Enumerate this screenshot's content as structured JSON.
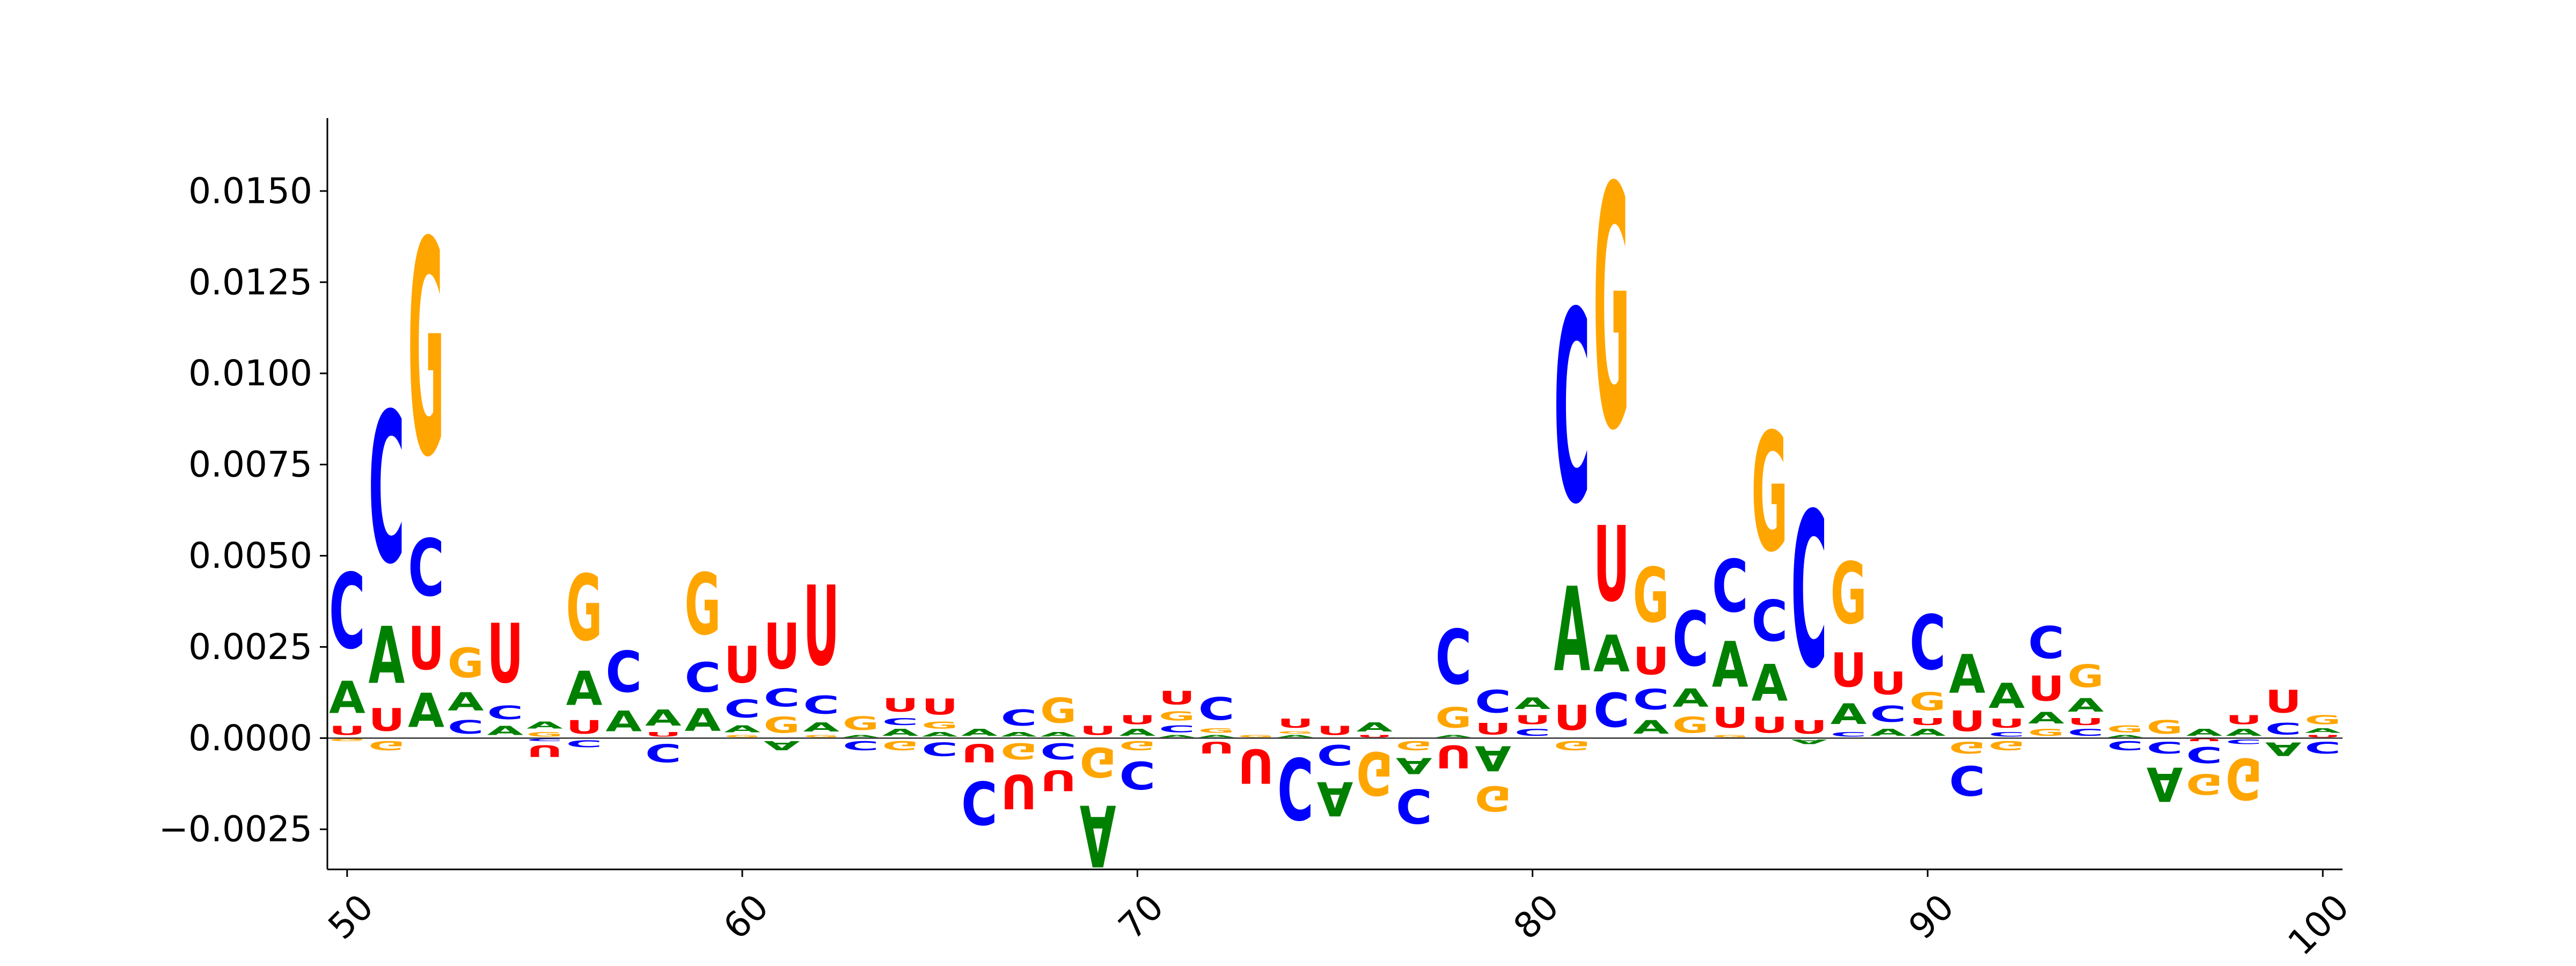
{
  "chart_data": {
    "type": "sequence-logo",
    "title": "",
    "xlabel": "",
    "ylabel": "",
    "xlim": [
      49.5,
      100.5
    ],
    "ylim": [
      -0.0036,
      0.017
    ],
    "x_ticks": [
      50,
      60,
      70,
      80,
      90,
      100
    ],
    "y_ticks": [
      -0.0025,
      0.0,
      0.0025,
      0.005,
      0.0075,
      0.01,
      0.0125,
      0.015
    ],
    "y_tick_labels": [
      "−0.0025",
      "0.0000",
      "0.0025",
      "0.0050",
      "0.0075",
      "0.0100",
      "0.0125",
      "0.0150"
    ],
    "colors": {
      "A": "#008000",
      "C": "#0000ff",
      "G": "#ffa500",
      "U": "#ff0000"
    },
    "positions": [
      {
        "x": 50,
        "A": 0.0014,
        "C": 0.0033,
        "G": -0.0001,
        "U": 0.0004
      },
      {
        "x": 51,
        "A": 0.0025,
        "C": 0.0066,
        "G": -0.0004,
        "U": 0.001
      },
      {
        "x": 52,
        "A": 0.0015,
        "C": 0.0025,
        "G": 0.0094,
        "U": 0.0019
      },
      {
        "x": 53,
        "A": 0.0008,
        "C": 0.0006,
        "G": 0.0013,
        "U": 0.0
      },
      {
        "x": 54,
        "A": 0.0004,
        "C": 0.0006,
        "G": 0.0,
        "U": 0.0026
      },
      {
        "x": 55,
        "A": 0.0003,
        "C": -0.0001,
        "G": 0.0002,
        "U": -0.0005
      },
      {
        "x": 56,
        "A": 0.0015,
        "C": -0.0003,
        "G": 0.0029,
        "U": 0.0006
      },
      {
        "x": 57,
        "A": 0.0009,
        "C": 0.0018,
        "G": 0.0,
        "U": 0.0
      },
      {
        "x": 58,
        "A": 0.0007,
        "C": -0.0008,
        "G": 0.0,
        "U": 0.0002
      },
      {
        "x": 59,
        "A": 0.001,
        "C": 0.0013,
        "G": 0.0027,
        "U": 0.0
      },
      {
        "x": 60,
        "A": 0.0003,
        "C": 0.0008,
        "G": 0.0001,
        "U": 0.0016
      },
      {
        "x": 61,
        "A": -0.0004,
        "C": 0.0008,
        "G": 0.0007,
        "U": 0.002
      },
      {
        "x": 62,
        "A": 0.0004,
        "C": 0.0008,
        "G": 0.0001,
        "U": 0.0035
      },
      {
        "x": 63,
        "A": 0.0001,
        "C": -0.0004,
        "G": 0.0006,
        "U": 0.0
      },
      {
        "x": 64,
        "A": 0.0003,
        "C": 0.0003,
        "G": -0.0004,
        "U": 0.0006
      },
      {
        "x": 65,
        "A": 0.0002,
        "C": -0.0006,
        "G": 0.0003,
        "U": 0.0007
      },
      {
        "x": 66,
        "A": 0.0003,
        "C": -0.0019,
        "G": 0.0,
        "U": -0.0008
      },
      {
        "x": 67,
        "A": 0.0002,
        "C": 0.0007,
        "G": -0.0007,
        "U": -0.0015
      },
      {
        "x": 68,
        "A": 0.0002,
        "C": -0.0007,
        "G": 0.0011,
        "U": -0.0009
      },
      {
        "x": 69,
        "A": -0.0027,
        "C": 0.0,
        "G": -0.0013,
        "U": 0.0004
      },
      {
        "x": 70,
        "A": 0.0003,
        "C": -0.0012,
        "G": -0.0004,
        "U": 0.0004
      },
      {
        "x": 71,
        "A": 0.0001,
        "C": 0.0003,
        "G": 0.0004,
        "U": 0.0006
      },
      {
        "x": 72,
        "A": 0.0001,
        "C": 0.001,
        "G": 0.0002,
        "U": -0.0005
      },
      {
        "x": 73,
        "A": 0.0,
        "C": 0.0,
        "G": 0.0001,
        "U": -0.0015
      },
      {
        "x": 74,
        "A": 0.0001,
        "C": -0.0027,
        "G": 0.0001,
        "U": 0.0004
      },
      {
        "x": 75,
        "A": -0.0015,
        "C": -0.0009,
        "G": 0.0,
        "U": 0.0004
      },
      {
        "x": 76,
        "A": 0.0004,
        "C": 0.0,
        "G": -0.0019,
        "U": 0.0001
      },
      {
        "x": 77,
        "A": -0.0007,
        "C": -0.0015,
        "G": -0.0004,
        "U": 0.0
      },
      {
        "x": 78,
        "A": 0.0001,
        "C": 0.0024,
        "G": 0.0009,
        "U": -0.001
      },
      {
        "x": 79,
        "A": -0.0011,
        "C": 0.001,
        "G": -0.0011,
        "U": 0.0005
      },
      {
        "x": 80,
        "A": 0.0005,
        "C": 0.0003,
        "G": 0.0,
        "U": 0.0004
      },
      {
        "x": 81,
        "A": 0.0037,
        "C": 0.0084,
        "G": -0.0004,
        "U": 0.0011
      },
      {
        "x": 82,
        "A": 0.0016,
        "C": 0.0015,
        "G": 0.0106,
        "U": 0.0033
      },
      {
        "x": 83,
        "A": 0.0006,
        "C": 0.0009,
        "G": 0.0024,
        "U": 0.0012
      },
      {
        "x": 84,
        "A": 0.0008,
        "C": 0.0024,
        "G": 0.0007,
        "U": 0.0
      },
      {
        "x": 85,
        "A": 0.002,
        "C": 0.0023,
        "G": 0.0001,
        "U": 0.0009
      },
      {
        "x": 86,
        "A": 0.0016,
        "C": 0.0018,
        "G": 0.0052,
        "U": 0.0007
      },
      {
        "x": 87,
        "A": -0.0002,
        "C": 0.0068,
        "G": 0.0,
        "U": 0.0006
      },
      {
        "x": 88,
        "A": 0.0009,
        "C": 0.0002,
        "G": 0.0027,
        "U": 0.0015
      },
      {
        "x": 89,
        "A": 0.0003,
        "C": 0.0007,
        "G": 0.0,
        "U": 0.001
      },
      {
        "x": 90,
        "A": 0.0003,
        "C": 0.0024,
        "G": 0.0008,
        "U": 0.0003
      },
      {
        "x": 91,
        "A": 0.0017,
        "C": -0.0013,
        "G": -0.0005,
        "U": 0.0009
      },
      {
        "x": 92,
        "A": 0.0011,
        "C": 0.0002,
        "G": -0.0004,
        "U": 0.0004
      },
      {
        "x": 93,
        "A": 0.0005,
        "C": 0.0014,
        "G": 0.0003,
        "U": 0.0011
      },
      {
        "x": 94,
        "A": 0.0006,
        "C": 0.0003,
        "G": 0.001,
        "U": 0.0003
      },
      {
        "x": 95,
        "A": 0.0001,
        "C": -0.0004,
        "G": 0.0003,
        "U": 0.0
      },
      {
        "x": 96,
        "A": -0.0015,
        "C": -0.0005,
        "G": 0.0006,
        "U": 0.0
      },
      {
        "x": 97,
        "A": 0.0003,
        "C": -0.0007,
        "G": -0.0009,
        "U": -0.0001
      },
      {
        "x": 98,
        "A": 0.0003,
        "C": -0.0002,
        "G": -0.0018,
        "U": 0.0004
      },
      {
        "x": 99,
        "A": -0.0006,
        "C": 0.0005,
        "G": 0.0,
        "U": 0.001
      },
      {
        "x": 100,
        "A": 0.0002,
        "C": -0.0005,
        "G": 0.0004,
        "U": 0.0001
      }
    ]
  }
}
